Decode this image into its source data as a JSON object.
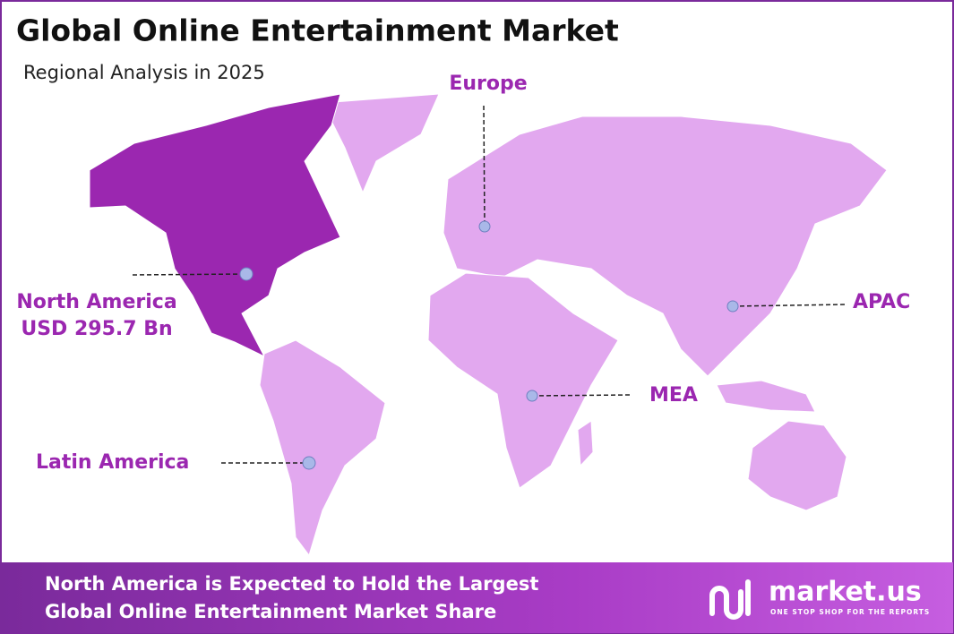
{
  "header": {
    "title": "Global Online Entertainment  Market",
    "subtitle": "Regional Analysis in 2025"
  },
  "regions": [
    {
      "name": "Europe"
    },
    {
      "name": "North America",
      "value_label": "USD 295.7 Bn"
    },
    {
      "name": "APAC"
    },
    {
      "name": "MEA"
    },
    {
      "name": "Latin America"
    }
  ],
  "footer": {
    "lines": [
      "North America is Expected to Hold the Largest",
      "Global Online Entertainment  Market Share"
    ],
    "logo": {
      "name": "market.us",
      "tagline": "ONE STOP SHOP FOR THE REPORTS"
    }
  }
}
